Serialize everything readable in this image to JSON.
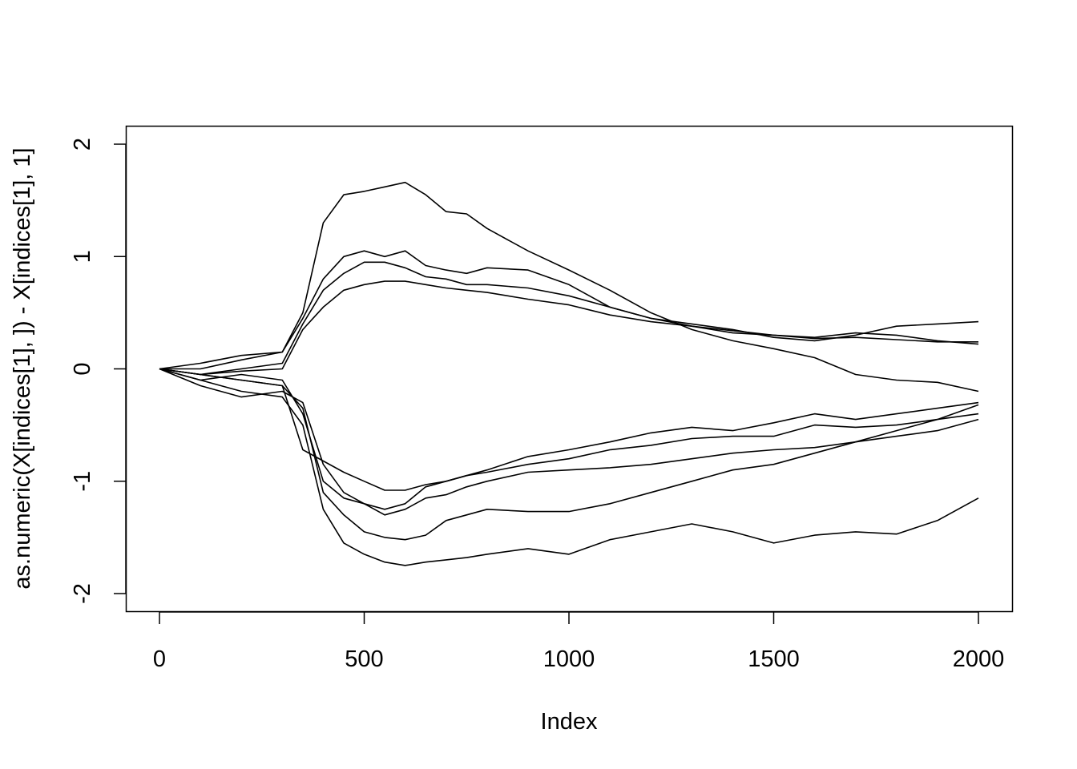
{
  "chart_data": {
    "type": "line",
    "title": "",
    "xlabel": "Index",
    "ylabel": "as.numeric(X[indices[1], ]) - X[indices[1], 1]",
    "xlim": [
      0,
      2000
    ],
    "ylim": [
      -2,
      2
    ],
    "x_ticks": [
      {
        "value": 0,
        "label": "0"
      },
      {
        "value": 500,
        "label": "500"
      },
      {
        "value": 1000,
        "label": "1000"
      },
      {
        "value": 1500,
        "label": "1500"
      },
      {
        "value": 2000,
        "label": "2000"
      }
    ],
    "y_ticks": [
      {
        "value": -2,
        "label": "-2"
      },
      {
        "value": -1,
        "label": "-1"
      },
      {
        "value": 0,
        "label": "0"
      },
      {
        "value": 1,
        "label": "1"
      },
      {
        "value": 2,
        "label": "2"
      }
    ],
    "grid": false,
    "line_color": "#000000",
    "x": [
      0,
      100,
      200,
      300,
      350,
      400,
      450,
      500,
      550,
      600,
      650,
      700,
      750,
      800,
      900,
      1000,
      1100,
      1200,
      1300,
      1400,
      1500,
      1600,
      1700,
      1800,
      1900,
      2000
    ],
    "series": [
      {
        "values": [
          0,
          0.05,
          0.12,
          0.15,
          0.5,
          1.3,
          1.55,
          1.58,
          1.62,
          1.66,
          1.55,
          1.4,
          1.38,
          1.25,
          1.05,
          0.88,
          0.7,
          0.5,
          0.35,
          0.25,
          0.18,
          0.1,
          -0.05,
          -0.1,
          -0.12,
          -0.2
        ]
      },
      {
        "values": [
          0,
          0.0,
          0.08,
          0.15,
          0.45,
          0.8,
          1.0,
          1.05,
          1.0,
          1.05,
          0.92,
          0.88,
          0.85,
          0.9,
          0.88,
          0.75,
          0.55,
          0.45,
          0.4,
          0.35,
          0.28,
          0.25,
          0.3,
          0.38,
          0.4,
          0.42
        ]
      },
      {
        "values": [
          0,
          -0.05,
          0.0,
          0.05,
          0.4,
          0.7,
          0.85,
          0.95,
          0.95,
          0.9,
          0.82,
          0.8,
          0.75,
          0.75,
          0.72,
          0.65,
          0.55,
          0.45,
          0.38,
          0.32,
          0.3,
          0.28,
          0.32,
          0.3,
          0.25,
          0.22
        ]
      },
      {
        "values": [
          0,
          -0.05,
          -0.02,
          0.0,
          0.35,
          0.55,
          0.7,
          0.75,
          0.78,
          0.78,
          0.75,
          0.72,
          0.7,
          0.68,
          0.62,
          0.57,
          0.48,
          0.42,
          0.38,
          0.34,
          0.3,
          0.27,
          0.28,
          0.26,
          0.24,
          0.24
        ]
      },
      {
        "values": [
          0,
          -0.05,
          -0.1,
          -0.15,
          -0.72,
          -0.82,
          -0.92,
          -1.0,
          -1.08,
          -1.08,
          -1.03,
          -1.0,
          -0.95,
          -0.9,
          -0.78,
          -0.72,
          -0.65,
          -0.57,
          -0.52,
          -0.55,
          -0.48,
          -0.4,
          -0.45,
          -0.4,
          -0.35,
          -0.3
        ]
      },
      {
        "values": [
          0,
          -0.15,
          -0.25,
          -0.2,
          -0.3,
          -0.85,
          -1.1,
          -1.2,
          -1.25,
          -1.2,
          -1.05,
          -1.0,
          -0.95,
          -0.92,
          -0.85,
          -0.8,
          -0.72,
          -0.68,
          -0.62,
          -0.6,
          -0.6,
          -0.5,
          -0.52,
          -0.5,
          -0.45,
          -0.32
        ]
      },
      {
        "values": [
          0,
          -0.1,
          -0.05,
          -0.1,
          -0.4,
          -1.0,
          -1.15,
          -1.2,
          -1.3,
          -1.25,
          -1.15,
          -1.12,
          -1.05,
          -1.0,
          -0.92,
          -0.9,
          -0.88,
          -0.85,
          -0.8,
          -0.75,
          -0.72,
          -0.7,
          -0.65,
          -0.6,
          -0.55,
          -0.45
        ]
      },
      {
        "values": [
          0,
          -0.05,
          -0.1,
          -0.15,
          -0.35,
          -1.1,
          -1.3,
          -1.45,
          -1.5,
          -1.52,
          -1.48,
          -1.35,
          -1.3,
          -1.25,
          -1.27,
          -1.27,
          -1.2,
          -1.1,
          -1.0,
          -0.9,
          -0.85,
          -0.75,
          -0.65,
          -0.55,
          -0.45,
          -0.4
        ]
      },
      {
        "values": [
          0,
          -0.1,
          -0.2,
          -0.25,
          -0.5,
          -1.25,
          -1.55,
          -1.65,
          -1.72,
          -1.75,
          -1.72,
          -1.7,
          -1.68,
          -1.65,
          -1.6,
          -1.65,
          -1.52,
          -1.45,
          -1.38,
          -1.45,
          -1.55,
          -1.48,
          -1.45,
          -1.47,
          -1.35,
          -1.15
        ]
      }
    ]
  }
}
